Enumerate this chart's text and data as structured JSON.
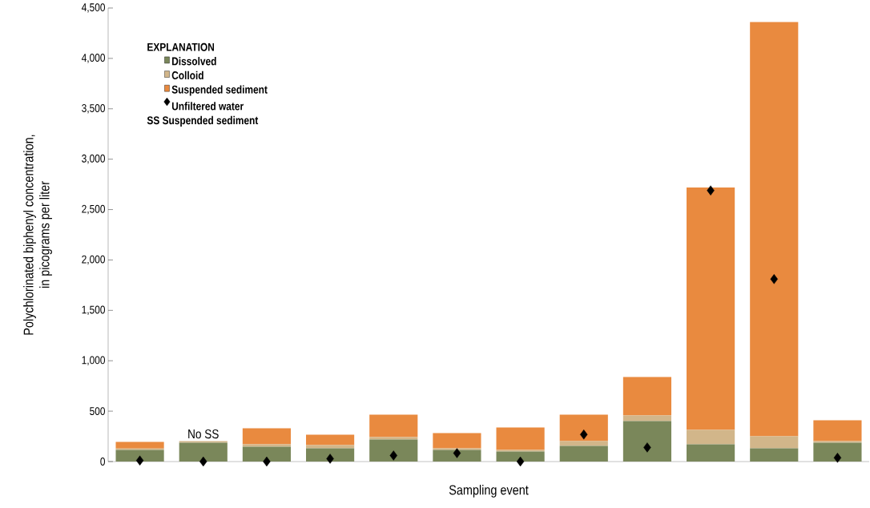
{
  "chart_data": {
    "type": "bar",
    "stacked": true,
    "xlabel": "Sampling event",
    "ylabel": "Polychlorinated biphenyl concentration,\nin picograms per liter",
    "legend_title": "EXPLANATION",
    "legend": "top left",
    "categories": [
      null,
      null,
      null,
      null,
      null,
      null,
      null,
      null,
      null,
      null,
      null,
      null
    ],
    "ylim": [
      0,
      4500
    ],
    "yticks": [
      0,
      500,
      {
        "value": 1000,
        "label": "1,000"
      },
      {
        "value": 1500,
        "label": "1,500"
      },
      {
        "value": 2000,
        "label": "2,000"
      },
      {
        "value": 2500,
        "label": "2,500"
      },
      {
        "value": 3000,
        "label": "3,000"
      },
      {
        "value": 3500,
        "label": "3,500"
      },
      {
        "value": 4000,
        "label": "4,000"
      },
      {
        "value": 4500,
        "label": "4,500"
      }
    ],
    "series": [
      {
        "name": "Dissolved",
        "color": "#7a875a",
        "values": [
          115,
          187,
          147,
          131,
          218,
          115,
          99,
          155,
          401,
          171,
          131,
          187
        ]
      },
      {
        "name": "Colloid",
        "color": "#d2b68a",
        "values": [
          15,
          16,
          24,
          32,
          24,
          16,
          16,
          48,
          56,
          143,
          119,
          16
        ]
      },
      {
        "name": "Suspended sediment",
        "color": "#e98a3f",
        "values": [
          65,
          0,
          159,
          103,
          223,
          151,
          222,
          262,
          381,
          2406,
          4110,
          207
        ],
        "value_labels": [
          null,
          "No SS",
          null,
          null,
          null,
          null,
          null,
          null,
          null,
          null,
          null,
          null
        ]
      },
      {
        "name": "Unfiltered water",
        "type": "scatter",
        "marker": "diamond",
        "color": "#000000",
        "values": [
          10,
          0,
          0,
          28,
          60,
          83,
          0,
          268,
          140,
          2690,
          1810,
          37
        ]
      }
    ],
    "annotations": [
      "SS Suspended sediment"
    ]
  }
}
